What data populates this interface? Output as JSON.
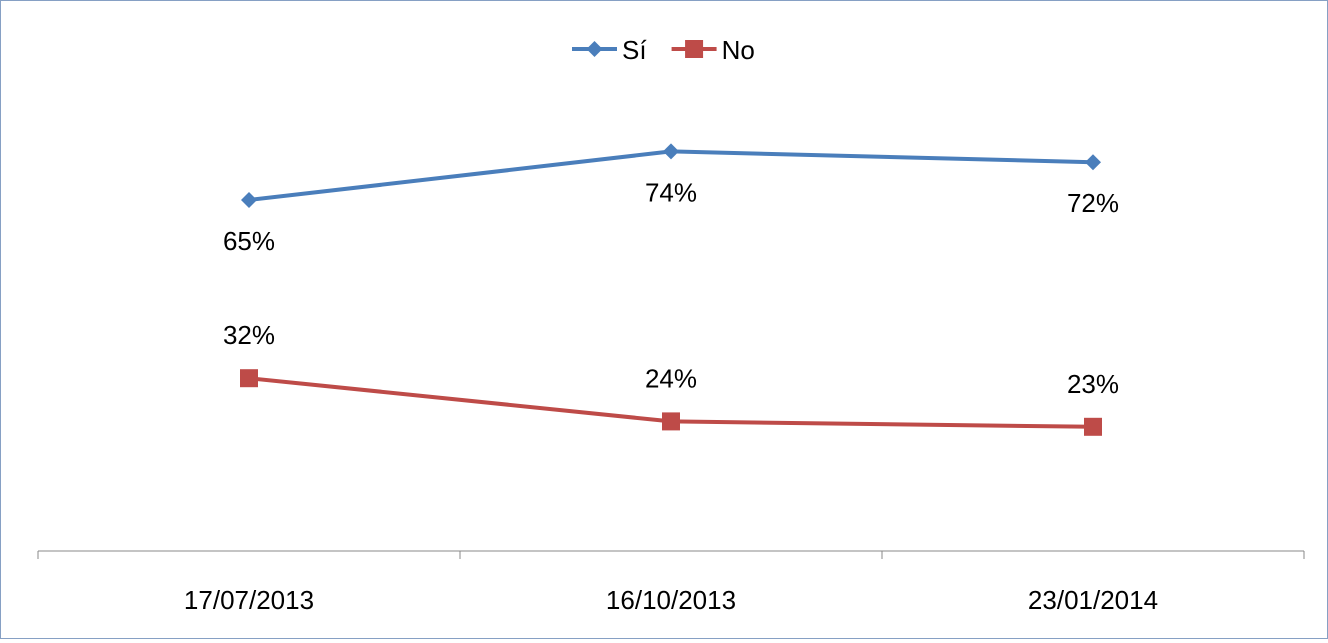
{
  "chart_data": {
    "type": "line",
    "categories": [
      "17/07/2013",
      "16/10/2013",
      "23/01/2014"
    ],
    "series": [
      {
        "name": "Sí",
        "values": [
          65,
          74,
          72
        ],
        "labels": [
          "65%",
          "74%",
          "72%"
        ],
        "color": "#4a7ebb",
        "marker": "diamond"
      },
      {
        "name": "No",
        "values": [
          32,
          24,
          23
        ],
        "labels": [
          "32%",
          "24%",
          "23%"
        ],
        "color": "#be4b48",
        "marker": "square"
      }
    ],
    "ylim": [
      0,
      100
    ],
    "y_axis_visible": false,
    "grid": false,
    "legend_position": "top-center",
    "title": "",
    "xlabel": "",
    "ylabel": ""
  }
}
